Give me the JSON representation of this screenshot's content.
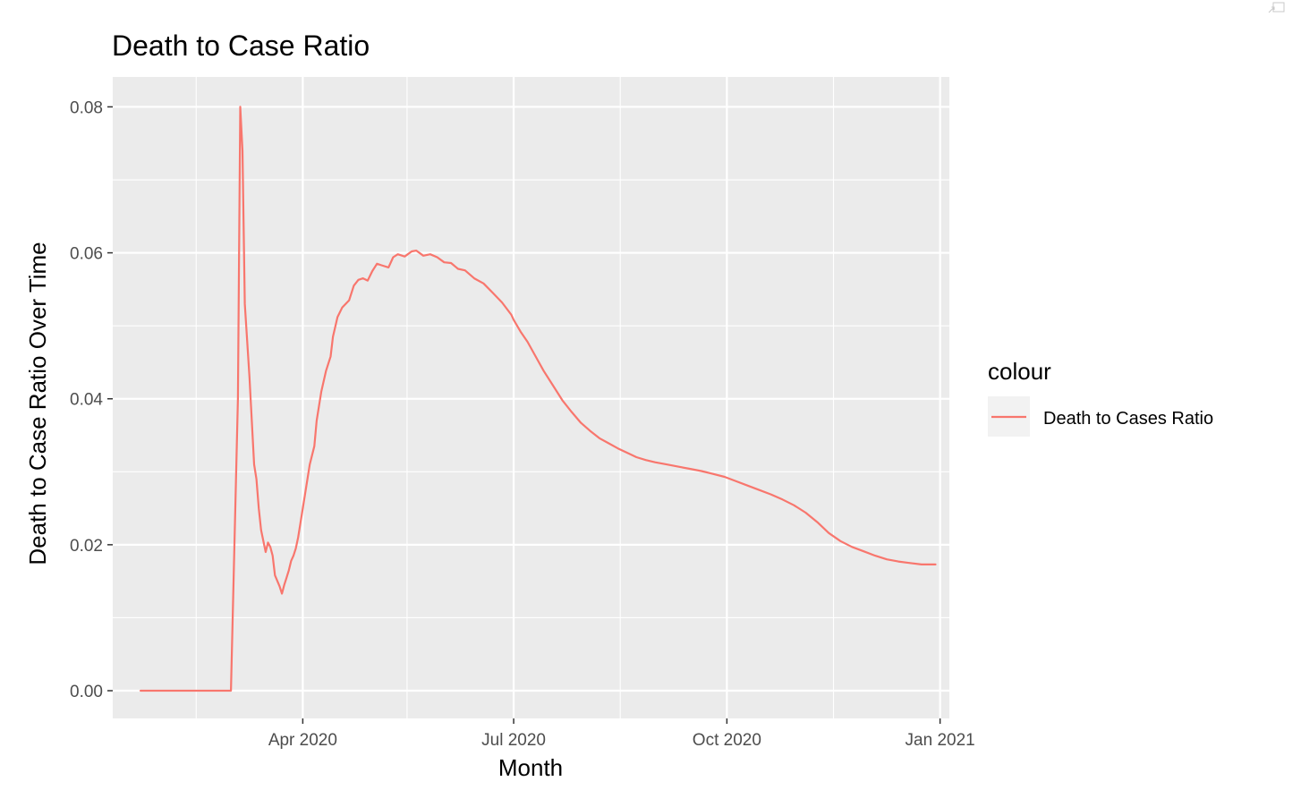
{
  "chart_data": {
    "type": "line",
    "title": "Death to Case Ratio",
    "xlabel": "Month",
    "ylabel": "Death to Case Ratio Over Time",
    "x_ticks": [
      "Apr 2020",
      "Jul 2020",
      "Oct 2020",
      "Jan 2021"
    ],
    "x_tick_dates": [
      "2020-04-01",
      "2020-07-01",
      "2020-10-01",
      "2021-01-01"
    ],
    "x_minor_dates": [
      "2020-02-15",
      "2020-05-16",
      "2020-08-16",
      "2020-11-16"
    ],
    "y_ticks": [
      "0.00",
      "0.02",
      "0.04",
      "0.06",
      "0.08"
    ],
    "xlim": [
      "2020-01-10",
      "2021-01-05"
    ],
    "ylim": [
      -0.0038,
      0.0841
    ],
    "grid": true,
    "legend": {
      "title": "colour",
      "position": "right",
      "entries": [
        "Death to Cases Ratio"
      ]
    },
    "colors": {
      "series": "#f8766d",
      "panel": "#ebebeb",
      "grid": "#ffffff",
      "legend_key": "#f2f2f2"
    },
    "series": [
      {
        "name": "Death to Cases Ratio",
        "points": [
          [
            "2020-01-22",
            0.0
          ],
          [
            "2020-02-01",
            0.0
          ],
          [
            "2020-02-10",
            0.0
          ],
          [
            "2020-02-20",
            0.0
          ],
          [
            "2020-03-01",
            0.0
          ],
          [
            "2020-03-04",
            0.04
          ],
          [
            "2020-03-05",
            0.08
          ],
          [
            "2020-03-06",
            0.074
          ],
          [
            "2020-03-07",
            0.053
          ],
          [
            "2020-03-09",
            0.043
          ],
          [
            "2020-03-11",
            0.031
          ],
          [
            "2020-03-12",
            0.029
          ],
          [
            "2020-03-13",
            0.025
          ],
          [
            "2020-03-14",
            0.022
          ],
          [
            "2020-03-16",
            0.019
          ],
          [
            "2020-03-17",
            0.0203
          ],
          [
            "2020-03-18",
            0.0197
          ],
          [
            "2020-03-19",
            0.0185
          ],
          [
            "2020-03-20",
            0.0158
          ],
          [
            "2020-03-22",
            0.0143
          ],
          [
            "2020-03-23",
            0.0133
          ],
          [
            "2020-03-24",
            0.0145
          ],
          [
            "2020-03-25",
            0.0155
          ],
          [
            "2020-03-26",
            0.0165
          ],
          [
            "2020-03-27",
            0.0178
          ],
          [
            "2020-03-28",
            0.0185
          ],
          [
            "2020-03-29",
            0.0195
          ],
          [
            "2020-03-30",
            0.021
          ],
          [
            "2020-03-31",
            0.023
          ],
          [
            "2020-04-02",
            0.027
          ],
          [
            "2020-04-04",
            0.031
          ],
          [
            "2020-04-06",
            0.0335
          ],
          [
            "2020-04-07",
            0.037
          ],
          [
            "2020-04-09",
            0.041
          ],
          [
            "2020-04-11",
            0.0438
          ],
          [
            "2020-04-13",
            0.0458
          ],
          [
            "2020-04-14",
            0.0485
          ],
          [
            "2020-04-16",
            0.0512
          ],
          [
            "2020-04-18",
            0.0525
          ],
          [
            "2020-04-21",
            0.0535
          ],
          [
            "2020-04-23",
            0.0555
          ],
          [
            "2020-04-25",
            0.0563
          ],
          [
            "2020-04-27",
            0.0565
          ],
          [
            "2020-04-29",
            0.0562
          ],
          [
            "2020-05-01",
            0.0575
          ],
          [
            "2020-05-03",
            0.0585
          ],
          [
            "2020-05-05",
            0.0583
          ],
          [
            "2020-05-08",
            0.058
          ],
          [
            "2020-05-10",
            0.0594
          ],
          [
            "2020-05-12",
            0.0598
          ],
          [
            "2020-05-15",
            0.0595
          ],
          [
            "2020-05-18",
            0.0602
          ],
          [
            "2020-05-20",
            0.0603
          ],
          [
            "2020-05-23",
            0.0596
          ],
          [
            "2020-05-26",
            0.0598
          ],
          [
            "2020-05-29",
            0.0594
          ],
          [
            "2020-06-01",
            0.0587
          ],
          [
            "2020-06-04",
            0.0586
          ],
          [
            "2020-06-07",
            0.0578
          ],
          [
            "2020-06-10",
            0.0576
          ],
          [
            "2020-06-14",
            0.0565
          ],
          [
            "2020-06-18",
            0.0558
          ],
          [
            "2020-06-22",
            0.0545
          ],
          [
            "2020-06-26",
            0.0532
          ],
          [
            "2020-06-30",
            0.0515
          ],
          [
            "2020-07-01",
            0.0508
          ],
          [
            "2020-07-04",
            0.0492
          ],
          [
            "2020-07-07",
            0.0478
          ],
          [
            "2020-07-11",
            0.0455
          ],
          [
            "2020-07-14",
            0.0438
          ],
          [
            "2020-07-18",
            0.0418
          ],
          [
            "2020-07-22",
            0.0398
          ],
          [
            "2020-07-26",
            0.0382
          ],
          [
            "2020-07-30",
            0.0367
          ],
          [
            "2020-08-03",
            0.0356
          ],
          [
            "2020-08-07",
            0.0346
          ],
          [
            "2020-08-11",
            0.0339
          ],
          [
            "2020-08-15",
            0.0332
          ],
          [
            "2020-08-19",
            0.0326
          ],
          [
            "2020-08-23",
            0.032
          ],
          [
            "2020-08-27",
            0.0316
          ],
          [
            "2020-08-31",
            0.0313
          ],
          [
            "2020-09-05",
            0.031
          ],
          [
            "2020-09-10",
            0.0307
          ],
          [
            "2020-09-15",
            0.0304
          ],
          [
            "2020-09-20",
            0.0301
          ],
          [
            "2020-09-25",
            0.0297
          ],
          [
            "2020-09-30",
            0.0293
          ],
          [
            "2020-10-05",
            0.0287
          ],
          [
            "2020-10-10",
            0.0281
          ],
          [
            "2020-10-15",
            0.0275
          ],
          [
            "2020-10-20",
            0.0269
          ],
          [
            "2020-10-25",
            0.0262
          ],
          [
            "2020-10-30",
            0.0254
          ],
          [
            "2020-11-04",
            0.0244
          ],
          [
            "2020-11-09",
            0.0231
          ],
          [
            "2020-11-14",
            0.0216
          ],
          [
            "2020-11-19",
            0.0205
          ],
          [
            "2020-11-24",
            0.0197
          ],
          [
            "2020-11-29",
            0.0191
          ],
          [
            "2020-12-04",
            0.0185
          ],
          [
            "2020-12-09",
            0.018
          ],
          [
            "2020-12-14",
            0.0177
          ],
          [
            "2020-12-19",
            0.0175
          ],
          [
            "2020-12-24",
            0.0173
          ],
          [
            "2020-12-30",
            0.0173
          ]
        ]
      }
    ]
  }
}
